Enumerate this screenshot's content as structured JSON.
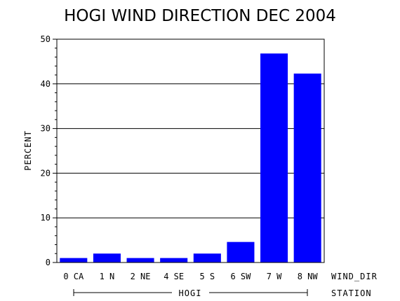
{
  "chart_data": {
    "type": "bar",
    "title": "HOGI WIND DIRECTION DEC 2004",
    "ylabel": "PERCENT",
    "xlabel": "WIND_DIR",
    "group_axis_label": "STATION",
    "group_label": "HOGI",
    "categories": [
      "0 CA",
      "1 N",
      "2 NE",
      "4 SE",
      "5 S",
      "6 SW",
      "7 W",
      "8 NW"
    ],
    "values": [
      1,
      2,
      1,
      1,
      2,
      4.6,
      46.8,
      42.3
    ],
    "ylim": [
      0,
      50
    ],
    "yticks": [
      "0",
      "10",
      "20",
      "30",
      "40",
      "50"
    ],
    "grid": true,
    "bar_color": "#0000ff"
  }
}
